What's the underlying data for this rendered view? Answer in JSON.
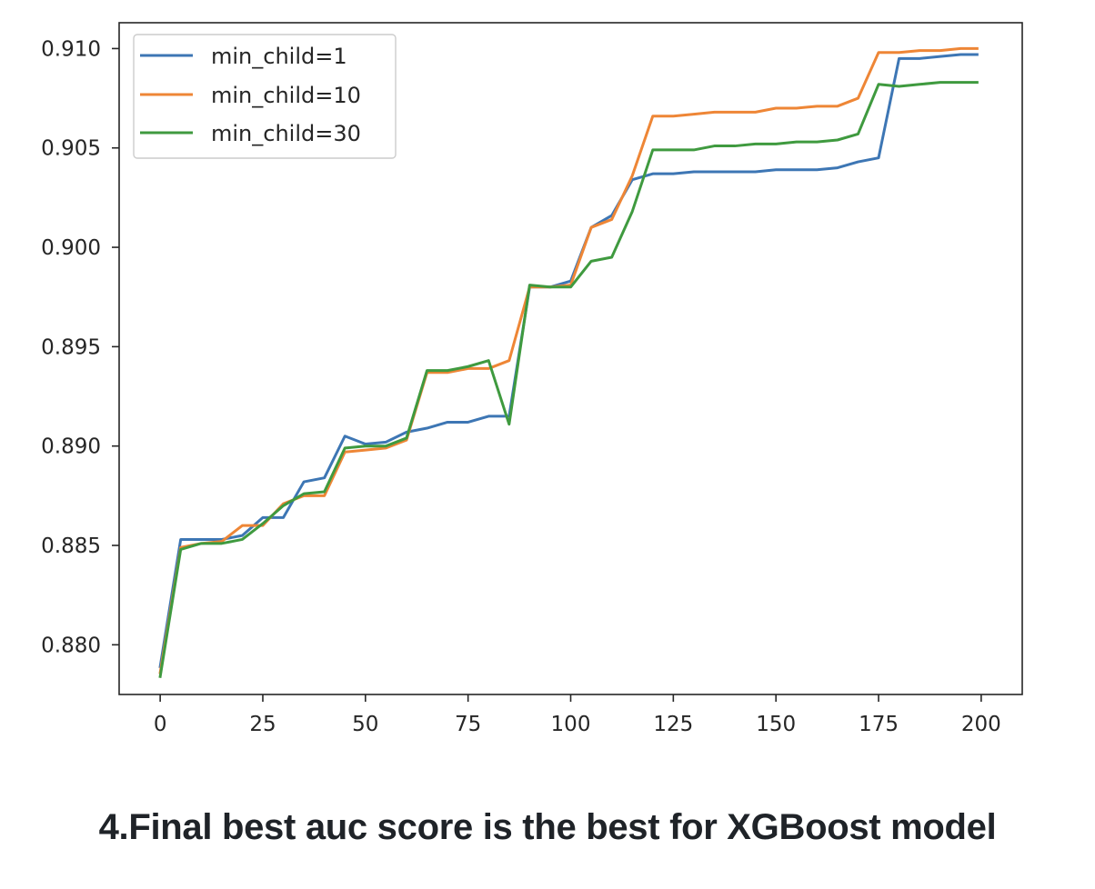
{
  "chart_data": {
    "type": "line",
    "title": "",
    "xlabel": "",
    "ylabel": "",
    "xlim": [
      -10,
      210
    ],
    "ylim": [
      0.8775,
      0.9113
    ],
    "xticks": [
      0,
      25,
      50,
      75,
      100,
      125,
      150,
      175,
      200
    ],
    "xtick_labels": [
      "0",
      "25",
      "50",
      "75",
      "100",
      "125",
      "150",
      "175",
      "200"
    ],
    "yticks": [
      0.88,
      0.885,
      0.89,
      0.895,
      0.9,
      0.905,
      0.91
    ],
    "ytick_labels": [
      "0.880",
      "0.885",
      "0.890",
      "0.895",
      "0.900",
      "0.905",
      "0.910"
    ],
    "grid": false,
    "legend_position": "top-left",
    "x": [
      0,
      5,
      10,
      15,
      20,
      25,
      30,
      35,
      40,
      45,
      50,
      55,
      60,
      65,
      70,
      75,
      80,
      85,
      90,
      95,
      100,
      105,
      110,
      115,
      120,
      125,
      130,
      135,
      140,
      145,
      150,
      155,
      160,
      165,
      170,
      175,
      180,
      185,
      190,
      195,
      199
    ],
    "series": [
      {
        "name": "min_child=1",
        "color": "#3d76b4",
        "values": [
          0.8789,
          0.8853,
          0.8853,
          0.8853,
          0.8855,
          0.8864,
          0.8864,
          0.8882,
          0.8884,
          0.8905,
          0.8901,
          0.8902,
          0.8907,
          0.8909,
          0.8912,
          0.8912,
          0.8915,
          0.8915,
          0.898,
          0.898,
          0.8983,
          0.901,
          0.9016,
          0.9034,
          0.9037,
          0.9037,
          0.9038,
          0.9038,
          0.9038,
          0.9038,
          0.9039,
          0.9039,
          0.9039,
          0.904,
          0.9043,
          0.9045,
          0.9095,
          0.9095,
          0.9096,
          0.9097,
          0.9097
        ]
      },
      {
        "name": "min_child=10",
        "color": "#ee8636",
        "values": [
          0.8786,
          0.8849,
          0.8851,
          0.8852,
          0.886,
          0.886,
          0.8871,
          0.8875,
          0.8875,
          0.8897,
          0.8898,
          0.8899,
          0.8903,
          0.8937,
          0.8937,
          0.8939,
          0.8939,
          0.8943,
          0.898,
          0.898,
          0.8981,
          0.901,
          0.9014,
          0.9036,
          0.9066,
          0.9066,
          0.9067,
          0.9068,
          0.9068,
          0.9068,
          0.907,
          0.907,
          0.9071,
          0.9071,
          0.9075,
          0.9098,
          0.9098,
          0.9099,
          0.9099,
          0.91,
          0.91
        ]
      },
      {
        "name": "min_child=30",
        "color": "#3f9a3f",
        "values": [
          0.8784,
          0.8848,
          0.8851,
          0.8851,
          0.8853,
          0.8861,
          0.887,
          0.8876,
          0.8877,
          0.8899,
          0.89,
          0.89,
          0.8904,
          0.8938,
          0.8938,
          0.894,
          0.8943,
          0.8911,
          0.8981,
          0.898,
          0.898,
          0.8993,
          0.8995,
          0.9018,
          0.9049,
          0.9049,
          0.9049,
          0.9051,
          0.9051,
          0.9052,
          0.9052,
          0.9053,
          0.9053,
          0.9054,
          0.9057,
          0.9082,
          0.9081,
          0.9082,
          0.9083,
          0.9083,
          0.9083
        ]
      }
    ]
  },
  "caption": "4.Final best auc score is the best for XGBoost model",
  "colors": {
    "axis": "#262626",
    "legend_border": "#cccccc",
    "caption_text": "#1f2328"
  }
}
